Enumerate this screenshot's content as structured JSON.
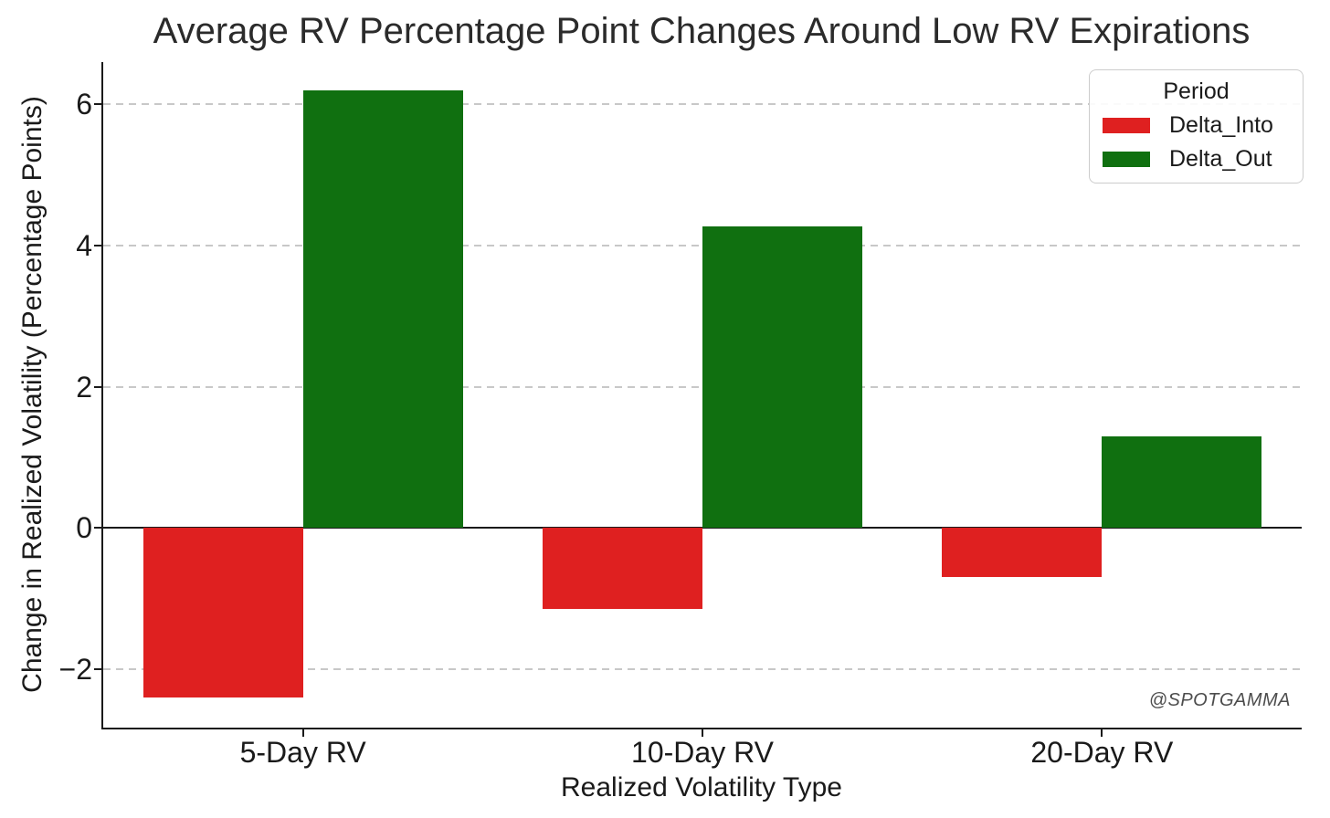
{
  "chart_data": {
    "type": "bar",
    "title": "Average RV Percentage Point Changes Around Low RV Expirations",
    "xlabel": "Realized Volatility Type",
    "ylabel": "Change in Realized Volatility (Percentage Points)",
    "categories": [
      "5-Day RV",
      "10-Day RV",
      "20-Day RV"
    ],
    "series": [
      {
        "name": "Delta_Into",
        "color": "#df2020",
        "values": [
          -2.4,
          -1.15,
          -0.7
        ]
      },
      {
        "name": "Delta_Out",
        "color": "#107010",
        "values": [
          6.2,
          4.27,
          1.3
        ]
      }
    ],
    "legend_title": "Period",
    "legend_position": "upper right",
    "ylim": [
      -2.83,
      6.6
    ],
    "yticks": [
      -2,
      0,
      2,
      4,
      6
    ],
    "grid": "horizontal dashed",
    "zero_line": true,
    "annotations": [
      "@SPOTGAMMA"
    ]
  },
  "colors": {
    "delta_into": "#df2020",
    "delta_out": "#107010",
    "gridline": "#c8c8c8",
    "spine": "#1a1a1a",
    "legend_border": "#cccccc",
    "watermark_text": "#4d4d4d"
  }
}
